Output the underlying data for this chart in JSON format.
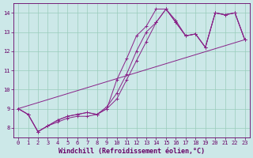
{
  "xlabel": "Windchill (Refroidissement éolien,°C)",
  "bg_color": "#cce8e8",
  "line_color": "#882288",
  "xlim": [
    -0.5,
    23.5
  ],
  "ylim": [
    7.5,
    14.5
  ],
  "yticks": [
    8,
    9,
    10,
    11,
    12,
    13,
    14
  ],
  "xticks": [
    0,
    1,
    2,
    3,
    4,
    5,
    6,
    7,
    8,
    9,
    10,
    11,
    12,
    13,
    14,
    15,
    16,
    17,
    18,
    19,
    20,
    21,
    22,
    23
  ],
  "grid_color": "#99ccbb",
  "font_color": "#660066",
  "tick_fontsize": 5.0,
  "label_fontsize": 6.0,
  "line1_x": [
    0,
    1,
    2,
    3,
    4,
    5,
    6,
    7,
    8,
    9,
    10,
    11,
    12,
    13,
    14,
    15,
    16,
    17,
    18,
    19,
    20,
    21,
    22,
    23
  ],
  "line1_y": [
    9.0,
    8.7,
    7.8,
    8.1,
    8.3,
    8.5,
    8.6,
    8.6,
    8.7,
    9.0,
    10.5,
    11.6,
    12.8,
    13.3,
    14.2,
    14.2,
    13.6,
    12.8,
    12.9,
    12.2,
    14.0,
    13.9,
    14.0,
    12.6
  ],
  "line2_x": [
    0,
    1,
    2,
    3,
    4,
    5,
    6,
    7,
    8,
    9,
    10,
    11,
    12,
    13,
    14,
    15,
    16,
    17,
    18,
    19,
    20,
    21,
    22,
    23
  ],
  "line2_y": [
    9.0,
    8.7,
    7.8,
    8.1,
    8.4,
    8.6,
    8.7,
    8.8,
    8.7,
    9.1,
    9.8,
    10.8,
    12.0,
    13.0,
    13.5,
    14.2,
    13.5,
    12.8,
    12.9,
    12.2,
    14.0,
    13.9,
    14.0,
    12.6
  ],
  "line3_x": [
    0,
    23
  ],
  "line3_y": [
    9.0,
    12.6
  ],
  "line4_x": [
    0,
    1,
    2,
    3,
    4,
    5,
    6,
    7,
    8,
    9,
    10,
    11,
    12,
    13,
    14,
    15,
    16,
    17,
    18,
    19,
    20,
    21,
    22,
    23
  ],
  "line4_y": [
    9.0,
    8.7,
    7.8,
    8.1,
    8.4,
    8.6,
    8.7,
    8.8,
    8.7,
    9.0,
    9.5,
    10.5,
    11.5,
    12.5,
    13.5,
    14.2,
    13.5,
    12.8,
    12.9,
    12.2,
    14.0,
    13.9,
    14.0,
    12.6
  ]
}
